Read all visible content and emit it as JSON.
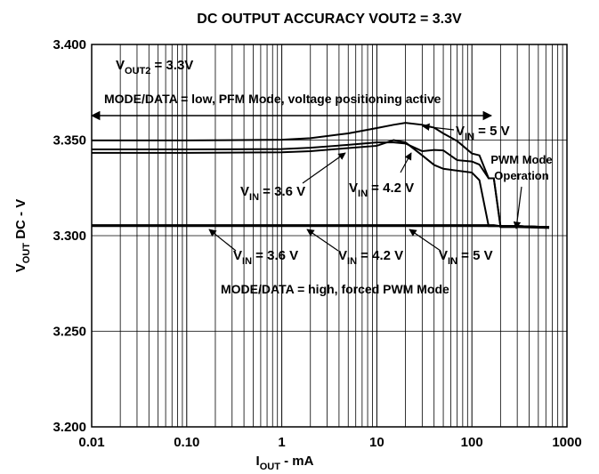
{
  "chart_data": {
    "type": "line",
    "title": "DC OUTPUT ACCURACY VOUT2 = 3.3V",
    "x_label": {
      "base": "I",
      "sub": "OUT",
      "rest": " - mA"
    },
    "y_label": {
      "base": "V",
      "sub": "OUT",
      "rest": " DC - V"
    },
    "x_scale": "log",
    "grid": true,
    "xlim": [
      0.01,
      1000
    ],
    "xticks": [
      0.01,
      {
        "value": 0.1,
        "label": "0.10"
      },
      1,
      10,
      100,
      1000
    ],
    "ylim": [
      3.2,
      3.4
    ],
    "yticks": [
      {
        "value": 3.2,
        "label": "3.200"
      },
      {
        "value": 3.25,
        "label": "3.250"
      },
      {
        "value": 3.3,
        "label": "3.300"
      },
      {
        "value": 3.35,
        "label": "3.350"
      },
      {
        "value": 3.4,
        "label": "3.400"
      }
    ],
    "annotations": {
      "vout": {
        "base": "V",
        "sub": "OUT2",
        "rest": " = 3.3V"
      },
      "pfm": "MODE/DATA = low, PFM Mode, voltage positioning active",
      "pwm": "MODE/DATA = high, forced PWM Mode",
      "pwm_operation": [
        "PWM Mode",
        "Operation"
      ]
    },
    "x": [
      0.01,
      0.1,
      1,
      2,
      5,
      10,
      15,
      20,
      30,
      40,
      50,
      70,
      100,
      120,
      150,
      170,
      200,
      250,
      300,
      650
    ],
    "series": [
      {
        "name": {
          "base": "V",
          "sub": "IN",
          "rest": " = 5 V"
        },
        "color": "#000000",
        "values": [
          3.3498,
          3.3498,
          3.3502,
          3.351,
          3.3535,
          3.3563,
          3.358,
          3.359,
          3.358,
          3.3565,
          3.3535,
          3.3495,
          3.343,
          3.342,
          3.33,
          3.33,
          3.3045,
          3.3045,
          3.3045,
          3.304
        ]
      },
      {
        "name": {
          "base": "V",
          "sub": "IN",
          "rest": " = 4.2 V"
        },
        "color": "#000000",
        "values": [
          3.3451,
          3.3451,
          3.3453,
          3.346,
          3.3475,
          3.3488,
          3.3488,
          3.3482,
          3.3442,
          3.3448,
          3.3446,
          3.3395,
          3.3388,
          3.3372,
          3.33,
          3.33,
          3.305,
          3.305,
          3.305,
          3.3045
        ]
      },
      {
        "name": {
          "base": "V",
          "sub": "IN",
          "rest": " = 3.6 V"
        },
        "color": "#000000",
        "values": [
          3.3433,
          3.3433,
          3.3436,
          3.3442,
          3.3458,
          3.347,
          3.35,
          3.3488,
          3.342,
          3.337,
          3.335,
          3.334,
          3.333,
          3.329,
          3.305,
          3.305,
          3.305,
          3.305,
          3.305,
          3.3045
        ]
      },
      {
        "name": {
          "base": "V",
          "sub": "IN",
          "rest": " = 3.6 V"
        },
        "color": "#000000",
        "values": [
          3.3055,
          3.3055,
          3.3055,
          3.3055,
          3.3055,
          3.3055,
          3.3055,
          3.3055,
          3.3055,
          3.3055,
          3.3055,
          3.3055,
          3.3055,
          3.3055,
          3.3055,
          3.3055,
          3.305,
          3.305,
          3.305,
          3.3045
        ]
      },
      {
        "name": {
          "base": "V",
          "sub": "IN",
          "rest": " = 4.2 V"
        },
        "color": "#000000",
        "values": [
          3.305,
          3.305,
          3.305,
          3.305,
          3.305,
          3.305,
          3.305,
          3.305,
          3.305,
          3.305,
          3.305,
          3.305,
          3.305,
          3.305,
          3.305,
          3.305,
          3.305,
          3.305,
          3.305,
          3.3045
        ]
      },
      {
        "name": {
          "base": "V",
          "sub": "IN",
          "rest": " = 5 V"
        },
        "color": "#000000",
        "values": [
          3.3052,
          3.3052,
          3.3052,
          3.3052,
          3.3052,
          3.3052,
          3.3052,
          3.3052,
          3.3052,
          3.3052,
          3.3052,
          3.3052,
          3.3052,
          3.3052,
          3.3052,
          3.3052,
          3.305,
          3.305,
          3.305,
          3.3045
        ]
      }
    ]
  }
}
